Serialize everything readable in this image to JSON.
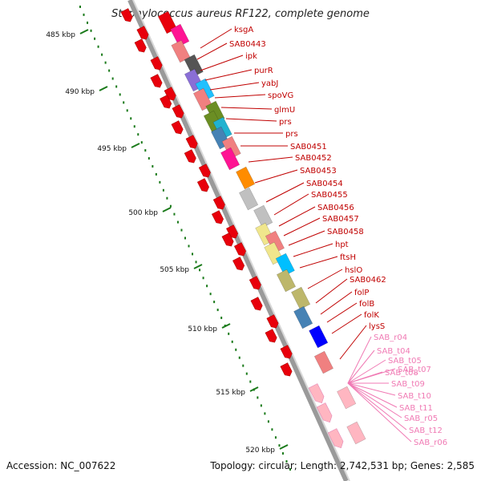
{
  "header": {
    "title": "Staphylococcus aureus RF122, complete genome"
  },
  "footer": {
    "accession": "Accession: NC_007622",
    "stats": "Topology: circular; Length: 2,742,531 bp; Genes: 2,585"
  },
  "scale": {
    "ticks": [
      {
        "label": "485 kbp",
        "kbp": 485
      },
      {
        "label": "490 kbp",
        "kbp": 490
      },
      {
        "label": "495 kbp",
        "kbp": 495
      },
      {
        "label": "500 kbp",
        "kbp": 500
      },
      {
        "label": "505 kbp",
        "kbp": 505
      },
      {
        "label": "510 kbp",
        "kbp": 510
      },
      {
        "label": "515 kbp",
        "kbp": 515
      },
      {
        "label": "520 kbp",
        "kbp": 520
      }
    ]
  },
  "colors": {
    "backbone": "#9a9a9a",
    "strand_arrow": "#e8000b",
    "gene_label": "#c00000",
    "rna_label": "#f07ab4",
    "tick": "#1a7a1a"
  },
  "cds_features": [
    {
      "color": "#e8000b"
    },
    {
      "color": "#ff1493"
    },
    {
      "color": "#f08080"
    },
    {
      "color": "#555555"
    },
    {
      "color": "#8a6fd6"
    },
    {
      "color": "#20c0ff"
    },
    {
      "color": "#f08080"
    },
    {
      "color": "#6b8e23"
    },
    {
      "color": "#6b8e23"
    },
    {
      "color": "#20b2d0"
    },
    {
      "color": "#4682b4"
    },
    {
      "color": "#f08080"
    },
    {
      "color": "#ff1493"
    },
    {
      "color": "#ff8c00"
    },
    {
      "color": "#c0c0c0"
    },
    {
      "color": "#c0c0c0"
    },
    {
      "color": "#f0e68c"
    },
    {
      "color": "#f08080"
    },
    {
      "color": "#f0e68c"
    },
    {
      "color": "#00bfff"
    },
    {
      "color": "#bdb76b"
    },
    {
      "color": "#bdb76b"
    },
    {
      "color": "#4682b4"
    },
    {
      "color": "#0000ff"
    },
    {
      "color": "#f08080"
    },
    {
      "color": "#ffb6c1"
    },
    {
      "color": "#ffb6c1"
    }
  ],
  "gene_labels": [
    "ksgA",
    "SAB0443",
    "ipk",
    "purR",
    "yabJ",
    "spoVG",
    "glmU",
    "prs",
    "prs",
    "SAB0451",
    "SAB0452",
    "SAB0453",
    "SAB0454",
    "SAB0455",
    "SAB0456",
    "SAB0457",
    "SAB0458",
    "hpt",
    "ftsH",
    "hslO",
    "SAB0462",
    "folP",
    "folB",
    "folK",
    "lysS"
  ],
  "rna_labels": [
    "SAB_r04",
    "SAB_t04",
    "SAB_t05",
    "SAB_t07",
    "SAB_t08",
    "SAB_t09",
    "SAB_t10",
    "SAB_t11",
    "SAB_r05",
    "SAB_t12",
    "SAB_r06"
  ]
}
